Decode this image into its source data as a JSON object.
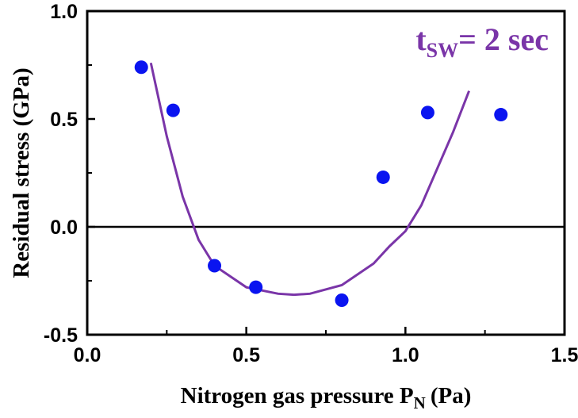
{
  "chart_data": {
    "type": "scatter",
    "xlabel": "Nitrogen gas pressure P",
    "xlabel_subscript": "N",
    "xlabel_unit": "(Pa)",
    "ylabel": "Residual stress (GPa)",
    "xlim": [
      0.0,
      1.5
    ],
    "ylim": [
      -0.5,
      1.0
    ],
    "x_ticks": [
      "0.0",
      "0.5",
      "1.0",
      "1.5"
    ],
    "y_ticks": [
      "-0.5",
      "0.0",
      "0.5",
      "1.0"
    ],
    "zero_line": true,
    "grid": false,
    "annotation": {
      "main": "t",
      "subscript": "SW",
      "rest": "= 2 sec",
      "color": "#7a35a8",
      "position": "top-right"
    },
    "series": [
      {
        "type": "scatter",
        "color": "#0a14f0",
        "x": [
          0.17,
          0.27,
          0.4,
          0.53,
          0.8,
          0.93,
          1.07,
          1.3
        ],
        "y": [
          0.74,
          0.54,
          -0.18,
          -0.28,
          -0.34,
          0.23,
          0.53,
          0.52
        ]
      },
      {
        "type": "line",
        "color": "#7a35a8",
        "x": [
          0.2,
          0.25,
          0.3,
          0.35,
          0.4,
          0.5,
          0.6,
          0.65,
          0.7,
          0.8,
          0.9,
          0.95,
          1.0,
          1.05,
          1.1,
          1.15,
          1.2
        ],
        "y": [
          0.76,
          0.42,
          0.14,
          -0.06,
          -0.18,
          -0.28,
          -0.31,
          -0.315,
          -0.31,
          -0.27,
          -0.17,
          -0.09,
          -0.02,
          0.1,
          0.27,
          0.44,
          0.63
        ]
      }
    ]
  }
}
